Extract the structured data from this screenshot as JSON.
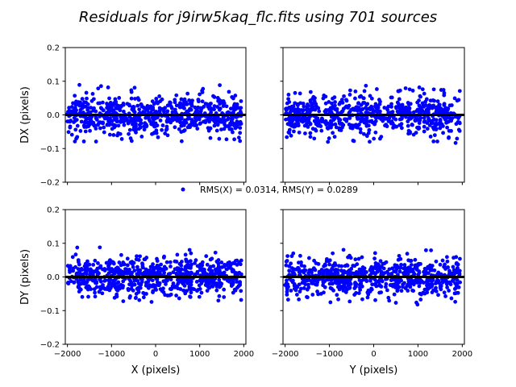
{
  "chart_data": {
    "type": "scatter",
    "title": "Residuals for j9irw5kaq_flc.fits using 701 sources",
    "legend": {
      "label": "RMS(X) = 0.0314, RMS(Y) = 0.0289",
      "placement": "center"
    },
    "colors": {
      "points": "#0000ff",
      "zero_line": "#000000"
    },
    "grid": false,
    "sources": 701,
    "panels": [
      {
        "id": "dx-vs-x",
        "xlabel": "",
        "ylabel": "DX (pixels)",
        "xlim": [
          -2048,
          2048
        ],
        "ylim": [
          -0.2,
          0.2
        ],
        "rms": 0.0314,
        "seed": 11
      },
      {
        "id": "dx-vs-y",
        "xlabel": "",
        "ylabel": "",
        "xlim": [
          -2048,
          2048
        ],
        "ylim": [
          -0.2,
          0.2
        ],
        "rms": 0.0314,
        "seed": 23
      },
      {
        "id": "dy-vs-x",
        "xlabel": "X (pixels)",
        "ylabel": "DY (pixels)",
        "xlim": [
          -2048,
          2048
        ],
        "ylim": [
          -0.2,
          0.2
        ],
        "rms": 0.0289,
        "seed": 37
      },
      {
        "id": "dy-vs-y",
        "xlabel": "Y (pixels)",
        "ylabel": "",
        "xlim": [
          -2048,
          2048
        ],
        "ylim": [
          -0.2,
          0.2
        ],
        "rms": 0.0289,
        "seed": 53
      }
    ],
    "x_ticks": [
      -2000,
      -1000,
      0,
      1000,
      2000
    ],
    "y_ticks": [
      -0.2,
      -0.1,
      0.0,
      0.1,
      0.2
    ],
    "x_range_of_points": [
      -2000,
      1950
    ]
  }
}
